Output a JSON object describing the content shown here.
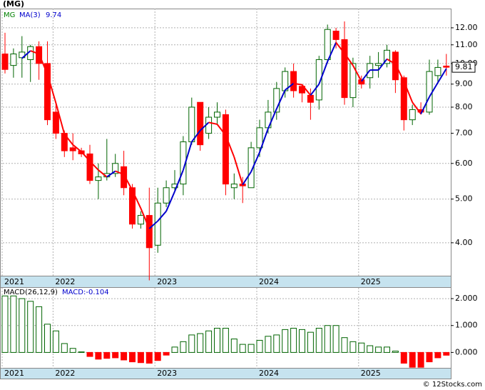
{
  "chart_data": [
    {
      "type": "candlestick",
      "title": "(MG)",
      "symbol": "MG",
      "log_scale": true,
      "grid": true,
      "up_color": "#006400",
      "down_color": "#ff0000",
      "categories": [
        "2021",
        null,
        null,
        null,
        null,
        null,
        "2022",
        null,
        null,
        null,
        null,
        null,
        null,
        null,
        null,
        null,
        null,
        null,
        "2023",
        null,
        null,
        null,
        null,
        null,
        null,
        null,
        null,
        null,
        null,
        null,
        "2024",
        null,
        null,
        null,
        null,
        null,
        null,
        null,
        null,
        null,
        null,
        null,
        "2025",
        null,
        null,
        null,
        null,
        null,
        null,
        null,
        null,
        null,
        null
      ],
      "open": [
        10.5,
        9.9,
        10.3,
        10.2,
        10.9,
        10.0,
        7.8,
        7.0,
        6.5,
        6.4,
        6.3,
        5.5,
        5.6,
        5.7,
        5.9,
        5.3,
        4.4,
        4.6,
        3.95,
        4.9,
        5.3,
        5.4,
        6.7,
        8.2,
        7.0,
        7.6,
        7.7,
        5.3,
        5.4,
        5.3,
        6.5,
        7.2,
        7.8,
        8.7,
        9.6,
        8.9,
        8.5,
        8.3,
        10.2,
        11.8,
        11.3,
        8.4,
        9.2,
        9.3,
        9.9,
        10.0,
        10.6,
        9.3,
        7.5,
        7.9,
        7.8,
        9.4,
        9.87
      ],
      "high": [
        11.7,
        10.8,
        11.5,
        11.0,
        11.2,
        11.2,
        8.2,
        7.1,
        7.0,
        6.5,
        6.6,
        6.0,
        6.8,
        6.3,
        6.4,
        5.4,
        4.7,
        5.3,
        5.3,
        5.5,
        5.8,
        6.9,
        8.4,
        8.2,
        8.0,
        8.2,
        7.9,
        5.7,
        5.6,
        6.7,
        7.5,
        8.3,
        9.1,
        9.8,
        10.0,
        9.0,
        8.8,
        10.4,
        12.2,
        12.0,
        12.4,
        10.3,
        9.4,
        10.4,
        10.6,
        11.0,
        10.7,
        9.4,
        8.1,
        8.2,
        10.2,
        10.2,
        10.5
      ],
      "low": [
        9.5,
        9.3,
        9.3,
        9.1,
        9.2,
        7.3,
        6.8,
        6.2,
        6.1,
        6.2,
        5.4,
        5.0,
        5.5,
        5.6,
        5.1,
        4.3,
        4.3,
        3.3,
        3.8,
        4.8,
        5.2,
        5.1,
        6.6,
        6.4,
        6.8,
        7.3,
        5.1,
        5.0,
        4.9,
        5.3,
        6.2,
        7.0,
        7.5,
        8.4,
        8.4,
        8.2,
        7.5,
        7.9,
        10.0,
        10.8,
        8.1,
        8.0,
        8.8,
        8.8,
        9.3,
        9.8,
        8.6,
        7.1,
        7.3,
        7.7,
        7.7,
        9.0,
        9.4
      ],
      "close": [
        9.7,
        10.5,
        10.6,
        10.9,
        10.0,
        7.5,
        7.0,
        6.4,
        6.4,
        6.3,
        5.5,
        5.6,
        5.7,
        6.0,
        5.3,
        4.4,
        4.6,
        3.9,
        4.9,
        5.3,
        5.4,
        6.7,
        8.0,
        6.6,
        7.6,
        7.8,
        5.4,
        5.4,
        5.35,
        6.5,
        7.2,
        7.8,
        8.8,
        9.6,
        8.7,
        8.6,
        8.2,
        10.2,
        11.9,
        11.3,
        8.4,
        10.0,
        9.0,
        10.0,
        10.0,
        10.7,
        9.2,
        7.5,
        7.9,
        7.8,
        9.6,
        9.8,
        9.81
      ],
      "ma": {
        "name": "MA(3)",
        "up_color": "#0000cc",
        "down_color": "#ff0000",
        "values": [
          null,
          null,
          10.27,
          10.67,
          10.5,
          9.47,
          8.17,
          6.97,
          6.6,
          6.37,
          6.07,
          5.8,
          5.6,
          5.77,
          5.67,
          5.23,
          4.77,
          4.3,
          4.47,
          4.7,
          5.2,
          5.8,
          6.7,
          7.1,
          7.4,
          7.33,
          6.93,
          6.2,
          5.38,
          5.75,
          6.35,
          7.17,
          7.93,
          8.73,
          9.03,
          8.97,
          8.5,
          9.0,
          10.1,
          11.13,
          10.53,
          9.9,
          9.13,
          9.67,
          9.67,
          10.23,
          9.97,
          9.13,
          8.2,
          7.73,
          8.43,
          9.07,
          9.74
        ]
      },
      "ylim": [
        3.38,
        13.24
      ],
      "yticks": [
        {
          "value": 4,
          "label": "4.00"
        },
        {
          "value": 5,
          "label": "5.00"
        },
        {
          "value": 6,
          "label": "6.00"
        },
        {
          "value": 7,
          "label": "7.00"
        },
        {
          "value": 8,
          "label": "8.00"
        },
        {
          "value": 9,
          "label": "9.00"
        },
        {
          "value": 10,
          "label": "10.00"
        },
        {
          "value": 11,
          "label": "11.00"
        },
        {
          "value": 12,
          "label": "12.00"
        }
      ]
    },
    {
      "type": "bar",
      "name": "MACD(26,12,9)",
      "current_label": "MACD:-0.104",
      "grid": true,
      "up_color": "#006400",
      "down_color": "#ff0000",
      "values": [
        2.1,
        2.1,
        2.0,
        1.9,
        1.7,
        1.05,
        0.8,
        0.33,
        0.15,
        0.02,
        -0.15,
        -0.25,
        -0.22,
        -0.2,
        -0.28,
        -0.35,
        -0.38,
        -0.4,
        -0.3,
        -0.1,
        0.2,
        0.4,
        0.65,
        0.7,
        0.8,
        0.9,
        0.9,
        0.5,
        0.3,
        0.3,
        0.45,
        0.6,
        0.65,
        0.85,
        0.9,
        0.85,
        0.75,
        0.9,
        1.0,
        1.0,
        0.55,
        0.4,
        0.35,
        0.25,
        0.2,
        0.2,
        0.05,
        -0.4,
        -0.55,
        -0.55,
        -0.35,
        -0.2,
        -0.104
      ],
      "ylim": [
        -0.6,
        2.4
      ],
      "yticks": [
        {
          "value": 0,
          "label": "0.000"
        },
        {
          "value": 1,
          "label": "1.000"
        },
        {
          "value": 2,
          "label": "2.000"
        }
      ]
    }
  ],
  "footer": "© 12Stocks.com"
}
